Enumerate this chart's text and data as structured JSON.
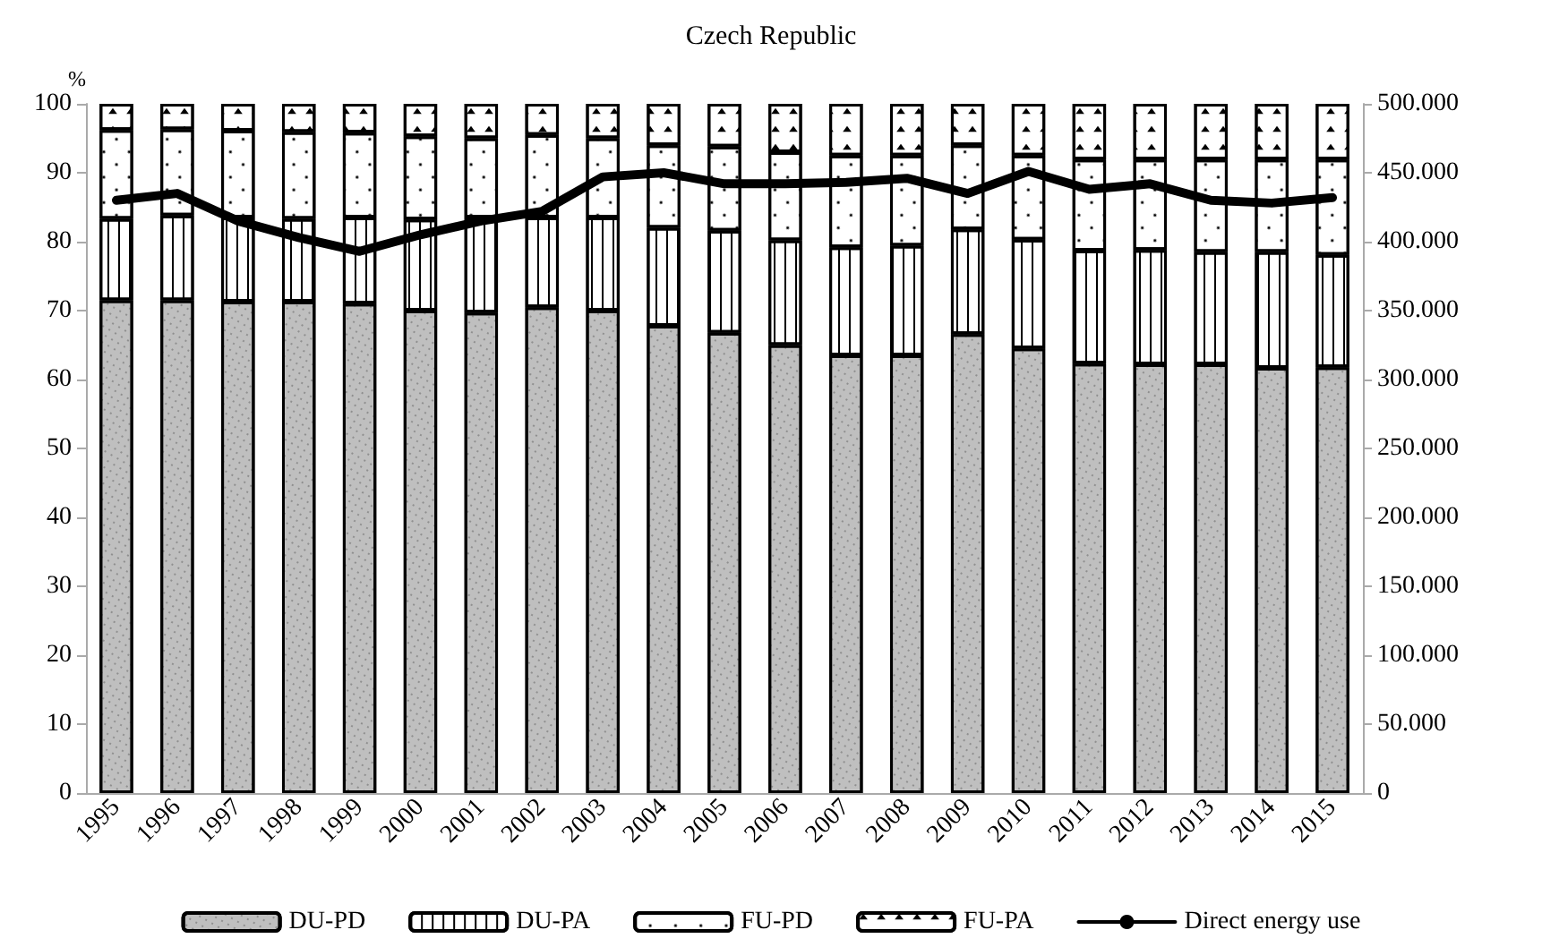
{
  "chart_data": {
    "type": "bar",
    "title": "Czech Republic",
    "ylabel": "%",
    "stacked": true,
    "grid": false,
    "legend": "bottom",
    "marker": "none",
    "categories": [
      "1995",
      "1996",
      "1997",
      "1998",
      "1999",
      "2000",
      "2001",
      "2002",
      "2003",
      "2004",
      "2005",
      "2006",
      "2007",
      "2008",
      "2009",
      "2010",
      "2011",
      "2012",
      "2013",
      "2014",
      "2015"
    ],
    "ylim": [
      0,
      100
    ],
    "yticks": [
      0,
      10,
      20,
      30,
      40,
      50,
      60,
      70,
      80,
      90,
      100
    ],
    "y2lim": [
      0,
      500000
    ],
    "y2ticks": [
      {
        "value": 0,
        "label": "0"
      },
      {
        "value": 50000,
        "label": "50.000"
      },
      {
        "value": 100000,
        "label": "100.000"
      },
      {
        "value": 150000,
        "label": "150.000"
      },
      {
        "value": 200000,
        "label": "200.000"
      },
      {
        "value": 250000,
        "label": "250.000"
      },
      {
        "value": 300000,
        "label": "300.000"
      },
      {
        "value": 350000,
        "label": "350.000"
      },
      {
        "value": 400000,
        "label": "400.000"
      },
      {
        "value": 450000,
        "label": "450.000"
      },
      {
        "value": 500000,
        "label": "500.000"
      }
    ],
    "series": [
      {
        "name": "DU-PD",
        "color": "#bfbfbf",
        "values": [
          71.5,
          71.5,
          71.3,
          71.3,
          71.0,
          70.0,
          69.7,
          70.5,
          70.0,
          67.8,
          66.8,
          65.0,
          63.5,
          63.5,
          66.6,
          64.5,
          62.3,
          62.2,
          62.2,
          61.7,
          61.8
        ]
      },
      {
        "name": "DU-PA",
        "color": "#ffffff",
        "values": [
          11.8,
          12.3,
          12.2,
          12.0,
          12.5,
          13.2,
          13.8,
          13.0,
          13.5,
          14.2,
          14.8,
          15.2,
          15.7,
          15.9,
          15.2,
          15.8,
          16.4,
          16.6,
          16.3,
          16.8,
          16.3
        ]
      },
      {
        "name": "FU-PD",
        "color": "#ffffff",
        "values": [
          12.9,
          12.5,
          12.6,
          12.6,
          12.3,
          12.1,
          11.5,
          12.0,
          11.5,
          12.0,
          12.2,
          12.8,
          13.3,
          13.1,
          12.2,
          12.2,
          13.2,
          13.1,
          13.4,
          13.4,
          13.8
        ]
      },
      {
        "name": "FU-PA",
        "color": "#ffffff",
        "values": [
          3.8,
          3.7,
          3.9,
          4.1,
          4.2,
          4.7,
          5.0,
          4.5,
          5.0,
          6.0,
          6.2,
          7.0,
          7.5,
          7.5,
          6.0,
          7.5,
          8.1,
          8.1,
          8.1,
          8.1,
          8.1
        ]
      },
      {
        "name": "Direct energy use",
        "type": "line",
        "axis": "y2",
        "color": "#000000",
        "values": [
          430000,
          435000,
          415000,
          403000,
          393000,
          405000,
          415000,
          422000,
          447000,
          450000,
          442000,
          442000,
          443000,
          446000,
          435000,
          451000,
          438000,
          442000,
          430000,
          428000,
          432000
        ]
      }
    ]
  }
}
